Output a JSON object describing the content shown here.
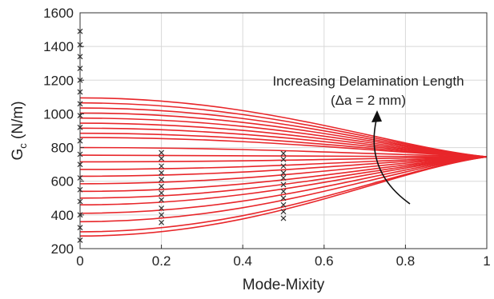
{
  "chart_data": {
    "type": "line",
    "xlabel": "Mode-Mixity",
    "ylabel": "G",
    "ylabel_subscript": "c",
    "ylabel_unit": " (N/m)",
    "xlim": [
      0,
      1
    ],
    "ylim": [
      200,
      1600
    ],
    "xticks": [
      "0",
      "0.2",
      "0.4",
      "0.6",
      "0.8",
      "1"
    ],
    "xtick_values": [
      0,
      0.2,
      0.4,
      0.6,
      0.8,
      1
    ],
    "yticks": [
      "200",
      "400",
      "600",
      "800",
      "1000",
      "1200",
      "1400",
      "1600"
    ],
    "ytick_values": [
      200,
      400,
      600,
      800,
      1000,
      1200,
      1400,
      1600
    ],
    "grid": true,
    "annotation": {
      "line1": "Increasing Delamination Length",
      "line2": "(Δa = 2 mm)"
    },
    "curve_color": "#e8262a",
    "convergence_point": {
      "x": 1,
      "y": 745
    },
    "curve_start_values": [
      1095,
      1065,
      1035,
      1005,
      975,
      945,
      915,
      885,
      860,
      800,
      755,
      715,
      670,
      630,
      585,
      540,
      500,
      460,
      410,
      360,
      300,
      275
    ],
    "markers": [
      {
        "x": 0,
        "y": [
          250,
          325,
          400,
          480,
          550,
          620,
          700,
          760,
          840,
          920,
          990,
          1060,
          1130,
          1200,
          1270,
          1340,
          1410,
          1490
        ]
      },
      {
        "x": 0.2,
        "y": [
          355,
          400,
          440,
          490,
          530,
          570,
          610,
          650,
          690,
          735,
          770
        ]
      },
      {
        "x": 0.5,
        "y": [
          380,
          420,
          460,
          500,
          540,
          580,
          620,
          650,
          690,
          730,
          765
        ]
      }
    ]
  }
}
